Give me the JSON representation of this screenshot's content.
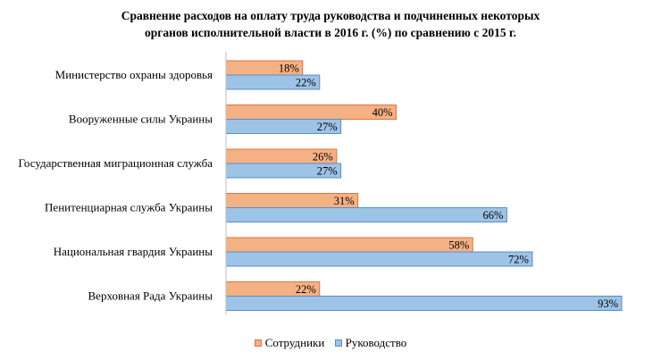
{
  "chart_data": {
    "type": "bar",
    "orientation": "horizontal",
    "title": "Сравнение  расходов  на  оплату  труда  руководства  и подчиненных  некоторых органов  исполнительной  власти  в 2016 г. (%) по  сравнению  с 2015 г.",
    "title_lines": [
      "Сравнение  расходов  на  оплату  труда  руководства  и подчиненных  некоторых",
      "органов  исполнительной  власти  в 2016 г. (%) по  сравнению  с 2015 г."
    ],
    "categories": [
      "Министерство охраны здоровья",
      "Вооруженные силы Украины",
      "Государственная миграционная  служба",
      "Пенитенциарная служба Украины",
      "Национальная гвардия Украины",
      "Верховная Рада Украины"
    ],
    "series": [
      {
        "name": "Сотрудники",
        "values": [
          18,
          40,
          26,
          31,
          58,
          22
        ],
        "labels": [
          "18%",
          "40%",
          "26%",
          "31%",
          "58%",
          "22%"
        ],
        "color": "#F4B183",
        "stroke": "#E0733E"
      },
      {
        "name": "Руководство",
        "values": [
          22,
          27,
          27,
          66,
          72,
          93
        ],
        "labels": [
          "22%",
          "27%",
          "27%",
          "66%",
          "72%",
          "93%"
        ],
        "color": "#9DC3E6",
        "stroke": "#5B8DC8"
      }
    ],
    "xlim": [
      0,
      93
    ],
    "grid": false,
    "legend_position": "bottom"
  }
}
